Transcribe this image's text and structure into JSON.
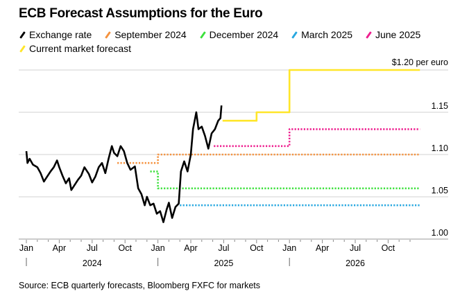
{
  "chart_data": {
    "type": "line",
    "title": "ECB Forecast Assumptions for the Euro",
    "ylabel": "$ per euro",
    "y_top_label": "$1.20 per euro",
    "ylim": [
      1.0,
      1.2
    ],
    "yticks": [
      {
        "v": 1.0,
        "label": "1.00"
      },
      {
        "v": 1.05,
        "label": "1.05"
      },
      {
        "v": 1.1,
        "label": "1.10"
      },
      {
        "v": 1.15,
        "label": "1.15"
      }
    ],
    "x_unit": "months since Jan 2024",
    "xlim": [
      -0.7,
      36.5
    ],
    "xticks": [
      {
        "m": 0,
        "label": "Jan"
      },
      {
        "m": 3,
        "label": "Apr"
      },
      {
        "m": 6,
        "label": "Jul"
      },
      {
        "m": 9,
        "label": "Oct"
      },
      {
        "m": 12,
        "label": "Jan"
      },
      {
        "m": 15,
        "label": "Apr"
      },
      {
        "m": 18,
        "label": "Jul"
      },
      {
        "m": 21,
        "label": "Oct"
      },
      {
        "m": 24,
        "label": "Jan"
      },
      {
        "m": 27,
        "label": "Apr"
      },
      {
        "m": 30,
        "label": "Jul"
      },
      {
        "m": 33,
        "label": "Oct"
      }
    ],
    "years": [
      {
        "m": 6,
        "label": "2024"
      },
      {
        "m": 18,
        "label": "2025"
      },
      {
        "m": 30,
        "label": "2026"
      }
    ],
    "grid": true,
    "legend_placement": "top-left",
    "series": [
      {
        "name": "Exchange rate",
        "color": "#000000",
        "style": "solid",
        "points": [
          [
            0,
            1.104
          ],
          [
            0.1,
            1.09
          ],
          [
            0.3,
            1.095
          ],
          [
            0.6,
            1.088
          ],
          [
            1,
            1.085
          ],
          [
            1.3,
            1.078
          ],
          [
            1.6,
            1.068
          ],
          [
            1.8,
            1.072
          ],
          [
            2.2,
            1.08
          ],
          [
            2.5,
            1.085
          ],
          [
            2.8,
            1.093
          ],
          [
            3.0,
            1.085
          ],
          [
            3.3,
            1.075
          ],
          [
            3.6,
            1.066
          ],
          [
            3.9,
            1.072
          ],
          [
            4.1,
            1.058
          ],
          [
            4.3,
            1.062
          ],
          [
            4.7,
            1.07
          ],
          [
            5.0,
            1.075
          ],
          [
            5.3,
            1.085
          ],
          [
            5.7,
            1.077
          ],
          [
            6.0,
            1.067
          ],
          [
            6.3,
            1.074
          ],
          [
            6.6,
            1.085
          ],
          [
            6.9,
            1.09
          ],
          [
            7.2,
            1.078
          ],
          [
            7.5,
            1.095
          ],
          [
            7.8,
            1.11
          ],
          [
            8.0,
            1.102
          ],
          [
            8.3,
            1.098
          ],
          [
            8.6,
            1.11
          ],
          [
            8.9,
            1.104
          ],
          [
            9.2,
            1.09
          ],
          [
            9.5,
            1.082
          ],
          [
            9.9,
            1.086
          ],
          [
            10.2,
            1.06
          ],
          [
            10.5,
            1.053
          ],
          [
            10.8,
            1.04
          ],
          [
            11.0,
            1.05
          ],
          [
            11.3,
            1.04
          ],
          [
            11.6,
            1.042
          ],
          [
            11.9,
            1.03
          ],
          [
            12.2,
            1.033
          ],
          [
            12.5,
            1.02
          ],
          [
            12.8,
            1.035
          ],
          [
            13.0,
            1.043
          ],
          [
            13.3,
            1.025
          ],
          [
            13.6,
            1.038
          ],
          [
            13.9,
            1.042
          ],
          [
            14.1,
            1.08
          ],
          [
            14.4,
            1.092
          ],
          [
            14.7,
            1.08
          ],
          [
            15.0,
            1.1
          ],
          [
            15.2,
            1.13
          ],
          [
            15.5,
            1.15
          ],
          [
            15.7,
            1.13
          ],
          [
            16.0,
            1.133
          ],
          [
            16.3,
            1.122
          ],
          [
            16.6,
            1.107
          ],
          [
            16.9,
            1.125
          ],
          [
            17.2,
            1.13
          ],
          [
            17.5,
            1.14
          ],
          [
            17.7,
            1.143
          ],
          [
            17.8,
            1.158
          ]
        ]
      },
      {
        "name": "September 2024",
        "color": "#f5923e",
        "style": "dotted",
        "points": [
          [
            8.3,
            1.09
          ],
          [
            12,
            1.09
          ],
          [
            12,
            1.1
          ],
          [
            35.9,
            1.1
          ]
        ]
      },
      {
        "name": "December 2024",
        "color": "#3de13d",
        "style": "dotted",
        "points": [
          [
            11.3,
            1.08
          ],
          [
            12,
            1.08
          ],
          [
            12,
            1.06
          ],
          [
            35.9,
            1.06
          ]
        ]
      },
      {
        "name": "March 2025",
        "color": "#29a8e0",
        "style": "dotted",
        "points": [
          [
            14,
            1.04
          ],
          [
            35.9,
            1.04
          ]
        ]
      },
      {
        "name": "June 2025",
        "color": "#ee1f8f",
        "style": "dotted",
        "points": [
          [
            17.1,
            1.11
          ],
          [
            24,
            1.11
          ],
          [
            24,
            1.13
          ],
          [
            35.9,
            1.13
          ]
        ]
      },
      {
        "name": "Current market forecast",
        "color": "#ffe629",
        "style": "solid",
        "points": [
          [
            17.9,
            1.14
          ],
          [
            21,
            1.14
          ],
          [
            21,
            1.15
          ],
          [
            24,
            1.15
          ],
          [
            24,
            1.2
          ],
          [
            35.9,
            1.2
          ]
        ]
      }
    ]
  },
  "source": "Source: ECB quarterly forecasts, Bloomberg FXFC for markets"
}
